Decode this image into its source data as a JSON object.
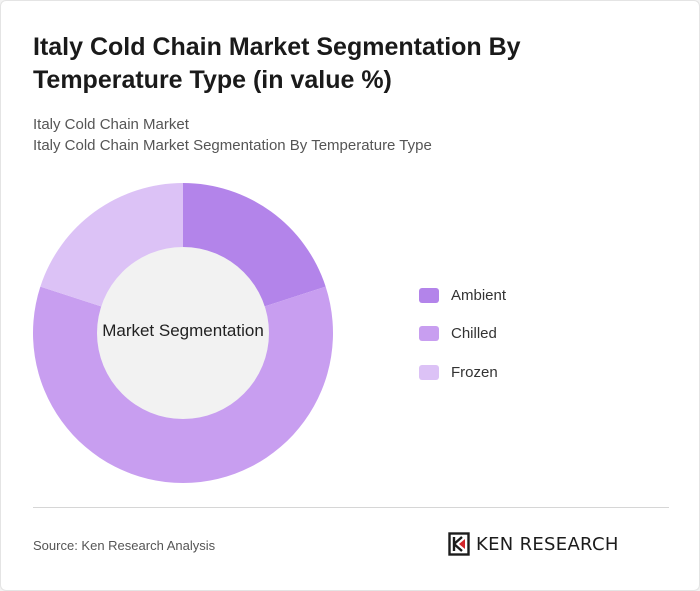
{
  "header": {
    "title": "Italy Cold Chain Market Segmentation By Temperature Type (in value %)",
    "breadcrumb_1": "Italy Cold Chain Market",
    "breadcrumb_2": "Italy Cold Chain Market Segmentation By Temperature Type"
  },
  "chart_data": {
    "type": "pie",
    "donut": true,
    "center_label": "Market Segmentation",
    "categories": [
      "Ambient",
      "Chilled",
      "Frozen"
    ],
    "values": [
      20,
      60,
      20
    ],
    "unit": "%",
    "colors": [
      "#b384ea",
      "#c89ef0",
      "#dcc2f6"
    ],
    "legend_position": "right"
  },
  "footer": {
    "source": "Source: Ken Research Analysis",
    "brand": "KEN RESEARCH"
  }
}
